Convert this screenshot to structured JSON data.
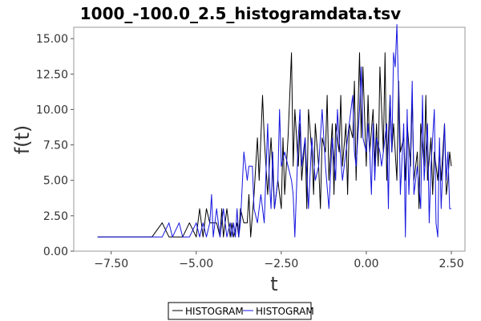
{
  "chart_data": {
    "type": "line",
    "title": "1000_-100.0_2.5_histogramdata.tsv",
    "xlabel": "t",
    "ylabel": "f(t)",
    "xlim": [
      -8.6,
      2.9
    ],
    "ylim": [
      0,
      15.8
    ],
    "xticks": [
      -7.5,
      -5.0,
      -2.5,
      0.0,
      2.5
    ],
    "xtick_labels": [
      "−7.50",
      "−5.00",
      "−2.50",
      "0.00",
      "2.50"
    ],
    "yticks": [
      0,
      2.5,
      5.0,
      7.5,
      10.0,
      12.5,
      15.0
    ],
    "ytick_labels": [
      "0.00",
      "2.50",
      "5.00",
      "7.50",
      "10.00",
      "12.50",
      "15.00"
    ],
    "grid": false,
    "legend_position": "bottom-center",
    "series": [
      {
        "name": "HISTOGRAM",
        "color": "#000000",
        "points": [
          [
            -7.9,
            1
          ],
          [
            -6.3,
            1
          ],
          [
            -6.0,
            2
          ],
          [
            -5.8,
            1
          ],
          [
            -5.4,
            1
          ],
          [
            -5.2,
            2
          ],
          [
            -5.0,
            1
          ],
          [
            -4.9,
            3
          ],
          [
            -4.8,
            1
          ],
          [
            -4.7,
            3
          ],
          [
            -4.6,
            2
          ],
          [
            -4.5,
            2
          ],
          [
            -4.4,
            2
          ],
          [
            -4.3,
            1
          ],
          [
            -4.25,
            3
          ],
          [
            -4.2,
            1
          ],
          [
            -4.1,
            3
          ],
          [
            -4.0,
            1
          ],
          [
            -3.95,
            2
          ],
          [
            -3.9,
            1
          ],
          [
            -3.8,
            2
          ],
          [
            -3.75,
            1
          ],
          [
            -3.7,
            3
          ],
          [
            -3.6,
            2
          ],
          [
            -3.5,
            2
          ],
          [
            -3.45,
            4
          ],
          [
            -3.4,
            1
          ],
          [
            -3.3,
            4
          ],
          [
            -3.2,
            8
          ],
          [
            -3.15,
            5
          ],
          [
            -3.05,
            11
          ],
          [
            -3.0,
            8
          ],
          [
            -2.9,
            4
          ],
          [
            -2.8,
            8
          ],
          [
            -2.7,
            3
          ],
          [
            -2.6,
            5
          ],
          [
            -2.5,
            3
          ],
          [
            -2.45,
            8
          ],
          [
            -2.4,
            4
          ],
          [
            -2.3,
            8
          ],
          [
            -2.2,
            14
          ],
          [
            -2.15,
            6
          ],
          [
            -2.1,
            10
          ],
          [
            -2.0,
            6
          ],
          [
            -1.95,
            9
          ],
          [
            -1.9,
            5
          ],
          [
            -1.8,
            8
          ],
          [
            -1.75,
            3
          ],
          [
            -1.7,
            10
          ],
          [
            -1.6,
            7
          ],
          [
            -1.55,
            4
          ],
          [
            -1.5,
            9
          ],
          [
            -1.4,
            6
          ],
          [
            -1.35,
            3
          ],
          [
            -1.3,
            8
          ],
          [
            -1.2,
            7
          ],
          [
            -1.15,
            11
          ],
          [
            -1.1,
            5
          ],
          [
            -1.0,
            9
          ],
          [
            -0.95,
            4
          ],
          [
            -0.9,
            9
          ],
          [
            -0.8,
            7
          ],
          [
            -0.75,
            11
          ],
          [
            -0.7,
            6
          ],
          [
            -0.6,
            9
          ],
          [
            -0.55,
            4
          ],
          [
            -0.5,
            9
          ],
          [
            -0.4,
            8
          ],
          [
            -0.35,
            12
          ],
          [
            -0.3,
            5
          ],
          [
            -0.2,
            14
          ],
          [
            -0.15,
            8
          ],
          [
            -0.1,
            13
          ],
          [
            0.0,
            6
          ],
          [
            0.05,
            11
          ],
          [
            0.1,
            7
          ],
          [
            0.2,
            10
          ],
          [
            0.25,
            6
          ],
          [
            0.3,
            9
          ],
          [
            0.35,
            6
          ],
          [
            0.4,
            13
          ],
          [
            0.5,
            7
          ],
          [
            0.55,
            14
          ],
          [
            0.6,
            5
          ],
          [
            0.7,
            11
          ],
          [
            0.75,
            7
          ],
          [
            0.8,
            9
          ],
          [
            0.9,
            5
          ],
          [
            0.95,
            12
          ],
          [
            1.0,
            7
          ],
          [
            1.1,
            8
          ],
          [
            1.15,
            5
          ],
          [
            1.2,
            9
          ],
          [
            1.3,
            6
          ],
          [
            1.35,
            11
          ],
          [
            1.4,
            5
          ],
          [
            1.5,
            7
          ],
          [
            1.55,
            3
          ],
          [
            1.6,
            9
          ],
          [
            1.7,
            6
          ],
          [
            1.75,
            11
          ],
          [
            1.8,
            5
          ],
          [
            1.9,
            8
          ],
          [
            1.95,
            4
          ],
          [
            2.0,
            7
          ],
          [
            2.1,
            5
          ],
          [
            2.15,
            7
          ],
          [
            2.2,
            5
          ],
          [
            2.3,
            9
          ],
          [
            2.35,
            4
          ],
          [
            2.4,
            5
          ],
          [
            2.45,
            7
          ],
          [
            2.5,
            6
          ]
        ]
      },
      {
        "name": "HISTOGRAM",
        "color": "#1515e0",
        "points": [
          [
            -7.9,
            1
          ],
          [
            -6.2,
            1
          ],
          [
            -6.0,
            1
          ],
          [
            -5.8,
            2
          ],
          [
            -5.7,
            1
          ],
          [
            -5.5,
            2
          ],
          [
            -5.4,
            1
          ],
          [
            -5.2,
            1
          ],
          [
            -5.0,
            2
          ],
          [
            -4.9,
            1
          ],
          [
            -4.8,
            2
          ],
          [
            -4.7,
            1
          ],
          [
            -4.6,
            2
          ],
          [
            -4.55,
            4
          ],
          [
            -4.5,
            1
          ],
          [
            -4.4,
            3
          ],
          [
            -4.3,
            1
          ],
          [
            -4.2,
            3
          ],
          [
            -4.1,
            1
          ],
          [
            -4.0,
            2
          ],
          [
            -3.95,
            1
          ],
          [
            -3.9,
            2
          ],
          [
            -3.85,
            1
          ],
          [
            -3.8,
            3
          ],
          [
            -3.75,
            1
          ],
          [
            -3.7,
            2
          ],
          [
            -3.6,
            7
          ],
          [
            -3.5,
            5
          ],
          [
            -3.45,
            6
          ],
          [
            -3.35,
            6
          ],
          [
            -3.3,
            3
          ],
          [
            -3.2,
            2
          ],
          [
            -3.1,
            4
          ],
          [
            -3.0,
            2
          ],
          [
            -2.9,
            9
          ],
          [
            -2.85,
            5
          ],
          [
            -2.8,
            3
          ],
          [
            -2.75,
            7
          ],
          [
            -2.7,
            3
          ],
          [
            -2.6,
            5
          ],
          [
            -2.55,
            10
          ],
          [
            -2.5,
            6
          ],
          [
            -2.4,
            7
          ],
          [
            -2.3,
            6
          ],
          [
            -2.2,
            5
          ],
          [
            -2.15,
            4
          ],
          [
            -2.1,
            1
          ],
          [
            -2.0,
            8
          ],
          [
            -1.95,
            10
          ],
          [
            -1.9,
            6
          ],
          [
            -1.8,
            8
          ],
          [
            -1.7,
            3
          ],
          [
            -1.6,
            8
          ],
          [
            -1.5,
            5
          ],
          [
            -1.4,
            6
          ],
          [
            -1.3,
            10
          ],
          [
            -1.2,
            6
          ],
          [
            -1.1,
            3
          ],
          [
            -1.0,
            8
          ],
          [
            -0.9,
            5
          ],
          [
            -0.85,
            10
          ],
          [
            -0.8,
            8
          ],
          [
            -0.7,
            5
          ],
          [
            -0.6,
            7
          ],
          [
            -0.5,
            9
          ],
          [
            -0.4,
            11
          ],
          [
            -0.35,
            7
          ],
          [
            -0.3,
            6
          ],
          [
            -0.2,
            10
          ],
          [
            -0.15,
            13
          ],
          [
            -0.1,
            8
          ],
          [
            0.0,
            7
          ],
          [
            0.05,
            9
          ],
          [
            0.1,
            7
          ],
          [
            0.15,
            4
          ],
          [
            0.2,
            9
          ],
          [
            0.25,
            5
          ],
          [
            0.3,
            8
          ],
          [
            0.4,
            7
          ],
          [
            0.45,
            6
          ],
          [
            0.5,
            7
          ],
          [
            0.6,
            9
          ],
          [
            0.65,
            3
          ],
          [
            0.7,
            11
          ],
          [
            0.75,
            7
          ],
          [
            0.8,
            14
          ],
          [
            0.85,
            13
          ],
          [
            0.9,
            16
          ],
          [
            0.95,
            11
          ],
          [
            1.0,
            4
          ],
          [
            1.1,
            9
          ],
          [
            1.15,
            1
          ],
          [
            1.2,
            10
          ],
          [
            1.25,
            4
          ],
          [
            1.3,
            7
          ],
          [
            1.35,
            12
          ],
          [
            1.4,
            4
          ],
          [
            1.5,
            6
          ],
          [
            1.6,
            3
          ],
          [
            1.65,
            11
          ],
          [
            1.7,
            5
          ],
          [
            1.8,
            9
          ],
          [
            1.85,
            2
          ],
          [
            1.9,
            6
          ],
          [
            2.0,
            10
          ],
          [
            2.05,
            2
          ],
          [
            2.1,
            1
          ],
          [
            2.15,
            8
          ],
          [
            2.2,
            3
          ],
          [
            2.3,
            9
          ],
          [
            2.35,
            5
          ],
          [
            2.4,
            7
          ],
          [
            2.45,
            3
          ],
          [
            2.5,
            3
          ]
        ]
      }
    ]
  }
}
